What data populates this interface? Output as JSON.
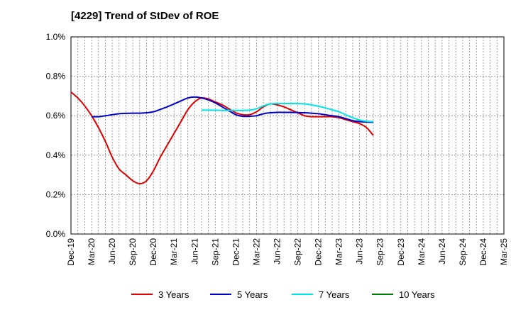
{
  "chart_data": {
    "type": "line",
    "title": "[4229]  Trend of StDev of ROE",
    "xlabel": "",
    "ylabel": "",
    "x": [
      "Dec-19",
      "Mar-20",
      "Jun-20",
      "Sep-20",
      "Dec-20",
      "Mar-21",
      "Jun-21",
      "Sep-21",
      "Dec-21",
      "Mar-22",
      "Jun-22",
      "Sep-22",
      "Dec-22",
      "Mar-23",
      "Jun-23",
      "Sep-23",
      "Dec-23",
      "Mar-24",
      "Jun-24",
      "Sep-24",
      "Dec-24",
      "Mar-25"
    ],
    "y_ticks": [
      "0.0%",
      "0.2%",
      "0.4%",
      "0.6%",
      "0.8%",
      "1.0%"
    ],
    "ylim": [
      0,
      1.0
    ],
    "y_unit": "%",
    "grid": true,
    "legend_position": "bottom",
    "series": [
      {
        "name": "3 Years",
        "color": "#dd0000",
        "points": [
          [
            0,
            0.72
          ],
          [
            1,
            0.69
          ],
          [
            2,
            0.65
          ],
          [
            3,
            0.6
          ],
          [
            4,
            0.54
          ],
          [
            5,
            0.47
          ],
          [
            6,
            0.39
          ],
          [
            7,
            0.33
          ],
          [
            8,
            0.3
          ],
          [
            9,
            0.27
          ],
          [
            10,
            0.255
          ],
          [
            11,
            0.27
          ],
          [
            12,
            0.32
          ],
          [
            13,
            0.39
          ],
          [
            14,
            0.45
          ],
          [
            15,
            0.51
          ],
          [
            16,
            0.57
          ],
          [
            17,
            0.63
          ],
          [
            18,
            0.67
          ],
          [
            19,
            0.69
          ],
          [
            20,
            0.685
          ],
          [
            21,
            0.67
          ],
          [
            22,
            0.655
          ],
          [
            23,
            0.635
          ],
          [
            24,
            0.615
          ],
          [
            25,
            0.605
          ],
          [
            26,
            0.605
          ],
          [
            27,
            0.62
          ],
          [
            28,
            0.645
          ],
          [
            29,
            0.66
          ],
          [
            30,
            0.655
          ],
          [
            31,
            0.645
          ],
          [
            32,
            0.63
          ],
          [
            33,
            0.615
          ],
          [
            34,
            0.6
          ],
          [
            35,
            0.595
          ],
          [
            36,
            0.595
          ],
          [
            37,
            0.595
          ],
          [
            38,
            0.595
          ],
          [
            39,
            0.59
          ],
          [
            40,
            0.58
          ],
          [
            41,
            0.57
          ],
          [
            42,
            0.56
          ],
          [
            43,
            0.54
          ],
          [
            44,
            0.5
          ]
        ]
      },
      {
        "name": "5 Years",
        "color": "#0000cc",
        "points": [
          [
            3,
            0.595
          ],
          [
            4,
            0.595
          ],
          [
            5,
            0.6
          ],
          [
            6,
            0.605
          ],
          [
            7,
            0.61
          ],
          [
            8,
            0.612
          ],
          [
            9,
            0.613
          ],
          [
            10,
            0.613
          ],
          [
            11,
            0.615
          ],
          [
            12,
            0.62
          ],
          [
            13,
            0.632
          ],
          [
            14,
            0.645
          ],
          [
            15,
            0.66
          ],
          [
            16,
            0.675
          ],
          [
            17,
            0.69
          ],
          [
            18,
            0.695
          ],
          [
            19,
            0.69
          ],
          [
            20,
            0.68
          ],
          [
            21,
            0.665
          ],
          [
            22,
            0.645
          ],
          [
            23,
            0.625
          ],
          [
            24,
            0.605
          ],
          [
            25,
            0.597
          ],
          [
            26,
            0.597
          ],
          [
            27,
            0.6
          ],
          [
            28,
            0.61
          ],
          [
            29,
            0.615
          ],
          [
            30,
            0.617
          ],
          [
            31,
            0.617
          ],
          [
            32,
            0.617
          ],
          [
            33,
            0.616
          ],
          [
            34,
            0.615
          ],
          [
            35,
            0.613
          ],
          [
            36,
            0.61
          ],
          [
            37,
            0.605
          ],
          [
            38,
            0.6
          ],
          [
            39,
            0.595
          ],
          [
            40,
            0.585
          ],
          [
            41,
            0.575
          ],
          [
            42,
            0.57
          ],
          [
            43,
            0.568
          ],
          [
            44,
            0.567
          ]
        ]
      },
      {
        "name": "7 Years",
        "color": "#00e5e5",
        "points": [
          [
            19,
            0.628
          ],
          [
            20,
            0.628
          ],
          [
            21,
            0.628
          ],
          [
            22,
            0.627
          ],
          [
            23,
            0.627
          ],
          [
            24,
            0.627
          ],
          [
            25,
            0.627
          ],
          [
            26,
            0.628
          ],
          [
            27,
            0.635
          ],
          [
            28,
            0.65
          ],
          [
            29,
            0.66
          ],
          [
            30,
            0.662
          ],
          [
            31,
            0.662
          ],
          [
            32,
            0.662
          ],
          [
            33,
            0.662
          ],
          [
            34,
            0.66
          ],
          [
            35,
            0.655
          ],
          [
            36,
            0.648
          ],
          [
            37,
            0.64
          ],
          [
            38,
            0.63
          ],
          [
            39,
            0.62
          ],
          [
            40,
            0.605
          ],
          [
            41,
            0.59
          ],
          [
            42,
            0.578
          ],
          [
            43,
            0.572
          ],
          [
            44,
            0.57
          ]
        ]
      },
      {
        "name": "10 Years",
        "color": "#008000",
        "points": []
      }
    ]
  }
}
